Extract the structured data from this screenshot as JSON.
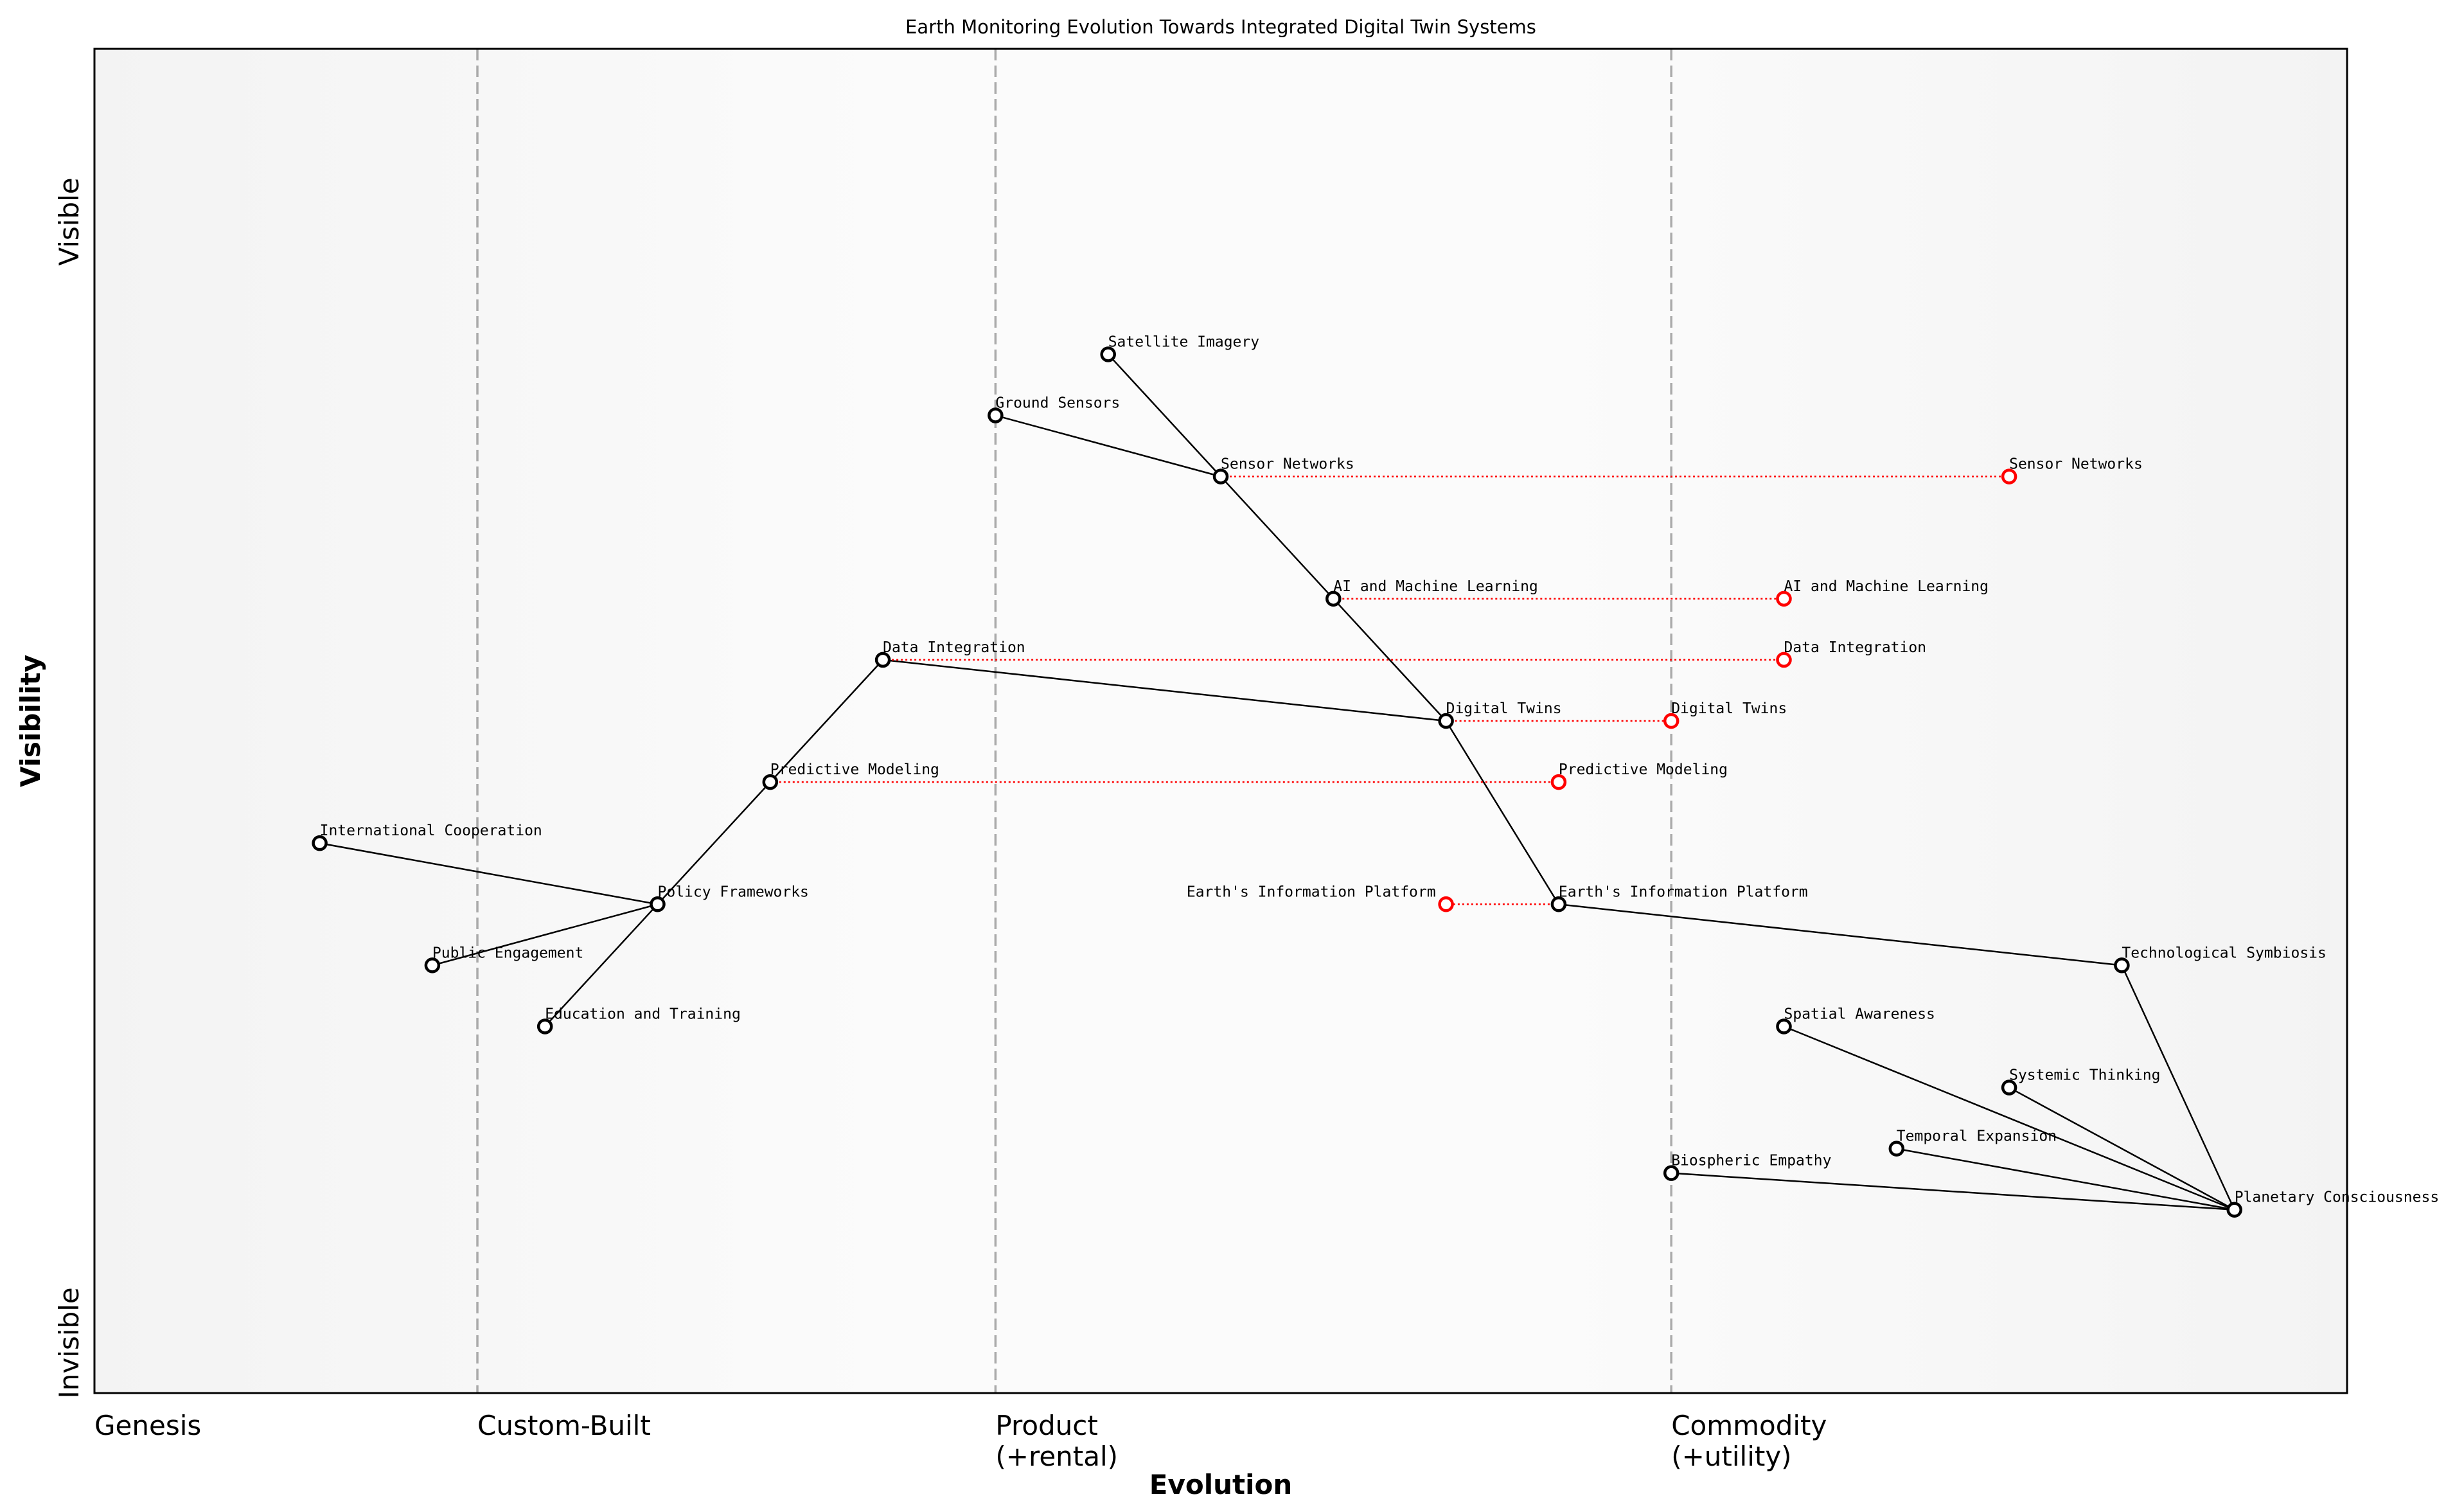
{
  "chart_data": {
    "type": "scatter",
    "title": "Earth Monitoring Evolution Towards Integrated Digital Twin Systems",
    "xlabel": "Evolution",
    "ylabel": "Visibility",
    "xlim": [
      0,
      1
    ],
    "ylim": [
      -0.05,
      1.05
    ],
    "y_tick_labels": {
      "top": "Visible",
      "bottom": "Invisible"
    },
    "stages": [
      {
        "label": "Genesis",
        "x": 0
      },
      {
        "label": "Custom-Built",
        "x": 0.17
      },
      {
        "label": "Product",
        "sub": "(+rental)",
        "x": 0.4
      },
      {
        "label": "Commodity",
        "sub": "(+utility)",
        "x": 0.7
      }
    ],
    "grid": false,
    "components": [
      {
        "name": "Satellite Imagery",
        "evolution": 0.45,
        "visibility": 0.8
      },
      {
        "name": "Ground Sensors",
        "evolution": 0.4,
        "visibility": 0.75
      },
      {
        "name": "Sensor Networks",
        "evolution": 0.5,
        "visibility": 0.7
      },
      {
        "name": "AI and Machine Learning",
        "evolution": 0.55,
        "visibility": 0.6
      },
      {
        "name": "Data Integration",
        "evolution": 0.35,
        "visibility": 0.55
      },
      {
        "name": "Digital Twins",
        "evolution": 0.6,
        "visibility": 0.5
      },
      {
        "name": "Predictive Modeling",
        "evolution": 0.3,
        "visibility": 0.45
      },
      {
        "name": "International Cooperation",
        "evolution": 0.1,
        "visibility": 0.4
      },
      {
        "name": "Policy Frameworks",
        "evolution": 0.25,
        "visibility": 0.35
      },
      {
        "name": "Public Engagement",
        "evolution": 0.15,
        "visibility": 0.3
      },
      {
        "name": "Education and Training",
        "evolution": 0.2,
        "visibility": 0.25
      },
      {
        "name": "Earth's Information Platform",
        "evolution": 0.65,
        "visibility": 0.35
      },
      {
        "name": "Technological Symbiosis",
        "evolution": 0.9,
        "visibility": 0.3
      },
      {
        "name": "Spatial Awareness",
        "evolution": 0.75,
        "visibility": 0.25
      },
      {
        "name": "Systemic Thinking",
        "evolution": 0.85,
        "visibility": 0.2
      },
      {
        "name": "Temporal Expansion",
        "evolution": 0.8,
        "visibility": 0.15
      },
      {
        "name": "Biospheric Empathy",
        "evolution": 0.7,
        "visibility": 0.13
      },
      {
        "name": "Planetary Consciousness",
        "evolution": 0.95,
        "visibility": 0.1
      }
    ],
    "links": [
      [
        "Satellite Imagery",
        "Sensor Networks"
      ],
      [
        "Ground Sensors",
        "Sensor Networks"
      ],
      [
        "Sensor Networks",
        "AI and Machine Learning"
      ],
      [
        "AI and Machine Learning",
        "Digital Twins"
      ],
      [
        "Data Integration",
        "Digital Twins"
      ],
      [
        "Digital Twins",
        "Earth's Information Platform"
      ],
      [
        "Predictive Modeling",
        "Data Integration"
      ],
      [
        "Policy Frameworks",
        "Predictive Modeling"
      ],
      [
        "International Cooperation",
        "Policy Frameworks"
      ],
      [
        "Public Engagement",
        "Policy Frameworks"
      ],
      [
        "Education and Training",
        "Policy Frameworks"
      ],
      [
        "Earth's Information Platform",
        "Technological Symbiosis"
      ],
      [
        "Technological Symbiosis",
        "Planetary Consciousness"
      ],
      [
        "Spatial Awareness",
        "Planetary Consciousness"
      ],
      [
        "Systemic Thinking",
        "Planetary Consciousness"
      ],
      [
        "Temporal Expansion",
        "Planetary Consciousness"
      ],
      [
        "Biospheric Empathy",
        "Planetary Consciousness"
      ]
    ],
    "evolutions": [
      {
        "name": "Sensor Networks",
        "to_evolution": 0.85
      },
      {
        "name": "AI and Machine Learning",
        "to_evolution": 0.75
      },
      {
        "name": "Data Integration",
        "to_evolution": 0.75
      },
      {
        "name": "Digital Twins",
        "to_evolution": 0.7
      },
      {
        "name": "Predictive Modeling",
        "to_evolution": 0.65
      },
      {
        "name": "Earth's Information Platform",
        "to_evolution": 0.6
      }
    ],
    "colors": {
      "component": "#000000",
      "evolved": "#ff0000",
      "stage_line": "#aaaaaa"
    }
  }
}
